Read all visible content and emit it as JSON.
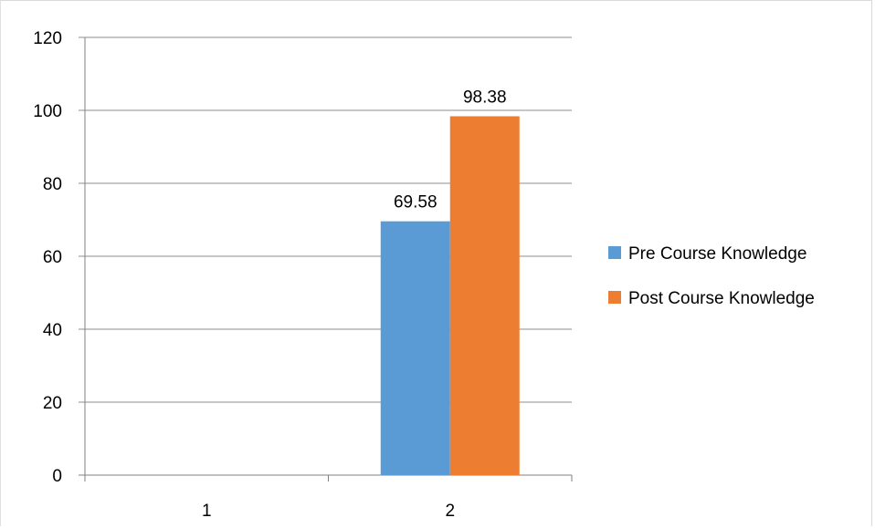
{
  "chart_data": {
    "type": "bar",
    "title": "",
    "xlabel": "",
    "ylabel": "",
    "categories": [
      "1",
      "2"
    ],
    "ylim": [
      0,
      120
    ],
    "yticks": [
      0,
      20,
      40,
      60,
      80,
      100,
      120
    ],
    "grid": true,
    "legend_position": "right",
    "series": [
      {
        "name": "Pre Course Knowledge",
        "color": "#5b9bd5",
        "values": [
          null,
          69.58
        ],
        "labels": [
          "",
          "69.58"
        ]
      },
      {
        "name": "Post Course Knowledge",
        "color": "#ed7d31",
        "values": [
          null,
          98.38
        ],
        "labels": [
          "",
          "98.38"
        ]
      }
    ]
  }
}
